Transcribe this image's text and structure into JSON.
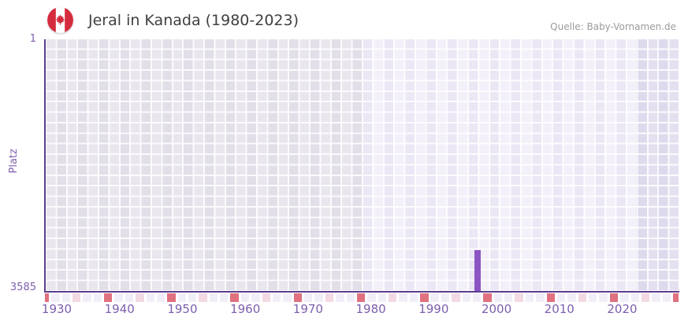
{
  "header": {
    "title": "Jeral in Kanada (1980-2023)",
    "source": "Quelle: Baby-Vornamen.de",
    "flag_icon": "canada-flag"
  },
  "y_axis": {
    "label": "Platz",
    "top_tick": "1",
    "bottom_tick": "3585"
  },
  "chart_data": {
    "type": "bar",
    "title": "Jeral in Kanada (1980-2023)",
    "source": "Quelle: Baby-Vornamen.de",
    "xlabel": "",
    "ylabel": "Platz",
    "y_axis": {
      "min": 1,
      "max": 3585,
      "inverted": true,
      "ticks": [
        1,
        3585
      ]
    },
    "x_ticks": [
      1930,
      1940,
      1950,
      1960,
      1970,
      1980,
      1990,
      2000,
      2010,
      2020
    ],
    "bars": [
      {
        "year": 1997,
        "rank": 2993
      }
    ],
    "highlight_years": {
      "from": 1978,
      "to": 2022
    },
    "grid": true,
    "legend": false,
    "colors": {
      "bar": "#8c55c4",
      "axis": "#5b3d8f",
      "tick_labels": "#7d5fad",
      "title_text": "#404040",
      "source_text": "#9b9b9b",
      "decade_tick": "#e0717e",
      "half_decade_tick": "#f3d9e3",
      "tick_row_base": "#f1eef8",
      "flag_red": "#d52b3e"
    }
  }
}
